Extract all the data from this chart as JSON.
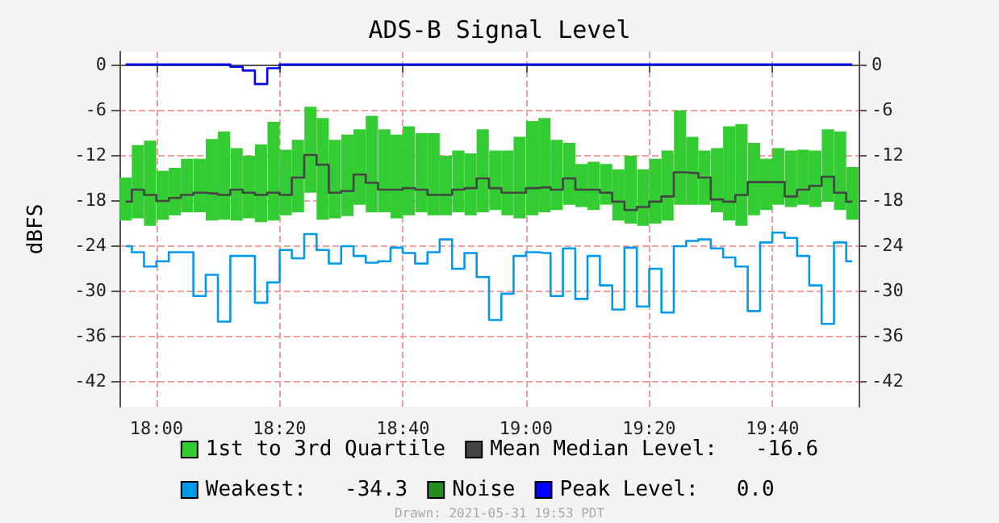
{
  "chart_data": {
    "type": "step",
    "title": "ADS-B Signal Level",
    "ylabel": "dBFS",
    "x": [
      17.917,
      17.95,
      17.983,
      18.017,
      18.05,
      18.083,
      18.117,
      18.15,
      18.183,
      18.217,
      18.25,
      18.283,
      18.317,
      18.35,
      18.383,
      18.417,
      18.45,
      18.483,
      18.517,
      18.55,
      18.583,
      18.617,
      18.65,
      18.683,
      18.717,
      18.75,
      18.783,
      18.817,
      18.85,
      18.883,
      18.917,
      18.95,
      18.983,
      19.017,
      19.05,
      19.083,
      19.117,
      19.15,
      19.183,
      19.217,
      19.25,
      19.283,
      19.317,
      19.35,
      19.383,
      19.417,
      19.45,
      19.483,
      19.517,
      19.55,
      19.583,
      19.617,
      19.65,
      19.683,
      19.717,
      19.75,
      19.783,
      19.817,
      19.85,
      19.883
    ],
    "series": [
      {
        "name": "1st to 3rd Quartile",
        "type": "bar",
        "color": "#33cc33",
        "base": [
          -20.7,
          -20.4,
          -21.4,
          -20.6,
          -20,
          -19.6,
          -19.6,
          -20.7,
          -20.6,
          -20.7,
          -20.4,
          -20.9,
          -20.7,
          -20,
          -19.6,
          -17,
          -20.6,
          -20.4,
          -20.1,
          -18.6,
          -19.6,
          -19.6,
          -20.4,
          -20,
          -19.6,
          -20,
          -20,
          -19.6,
          -20,
          -19.6,
          -19.3,
          -20,
          -20.4,
          -20,
          -19.6,
          -19.3,
          -18.6,
          -18.9,
          -19.3,
          -18.6,
          -20.7,
          -21.1,
          -21.4,
          -21.1,
          -20.7,
          -18.6,
          -18.6,
          -18.6,
          -19.6,
          -20.7,
          -21.4,
          -20,
          -19.3,
          -18.6,
          -18.9,
          -18.6,
          -18.9,
          -18.2,
          -19.3,
          -20.6
        ],
        "values": [
          5.7,
          9.7,
          11.3,
          6.5,
          6.3,
          7.1,
          7.1,
          10.8,
          11.7,
          9.6,
          8.3,
          10.3,
          13.1,
          8.7,
          9.6,
          11.4,
          13.5,
          10.4,
          10.8,
          10,
          12.8,
          11,
          11.1,
          11.8,
          10.5,
          10.9,
          7.9,
          8.2,
          8.2,
          11,
          7.9,
          8.6,
          10.8,
          12.5,
          12.5,
          9.3,
          8.2,
          5.7,
          6.4,
          5.4,
          6.8,
          9,
          7.5,
          8.6,
          9.3,
          12.5,
          9,
          7.2,
          8.5,
          12.5,
          13.5,
          9.6,
          6.8,
          7.5,
          7.5,
          7.3,
          7.5,
          9.6,
          10.4,
          7
        ]
      },
      {
        "name": "Mean Median Level:   -16.6",
        "color": "#444444",
        "values": [
          -18.2,
          -16.6,
          -17.3,
          -18.1,
          -17.7,
          -17.3,
          -17,
          -17.1,
          -17.3,
          -16.6,
          -17,
          -17.3,
          -17,
          -17.3,
          -15,
          -12,
          -13.3,
          -17,
          -16.8,
          -14.6,
          -15.7,
          -16.6,
          -16.6,
          -16.4,
          -16.6,
          -17.3,
          -17.3,
          -16.6,
          -16.4,
          -15.1,
          -16.4,
          -17,
          -17,
          -16.4,
          -16.3,
          -16.6,
          -15.1,
          -16.6,
          -16.6,
          -17,
          -18.2,
          -19.3,
          -18.9,
          -18.2,
          -17.5,
          -14.3,
          -14.4,
          -15,
          -17.9,
          -18.2,
          -17.3,
          -15.6,
          -15.6,
          -15.6,
          -17.5,
          -16.6,
          -16.1,
          -14.9,
          -17,
          -18.2
        ]
      },
      {
        "name": "Weakest:   -34.3",
        "color": "#0099ee",
        "values": [
          -24.1,
          -24.9,
          -26.8,
          -26.1,
          -24.9,
          -24.9,
          -30.7,
          -27.9,
          -34.1,
          -25.4,
          -25.4,
          -31.6,
          -28.9,
          -24.6,
          -25.7,
          -22.5,
          -24.6,
          -26.4,
          -24.1,
          -25.4,
          -26.3,
          -26.1,
          -24.3,
          -25,
          -26.4,
          -24.9,
          -23.2,
          -27.1,
          -25,
          -28.2,
          -33.9,
          -30.4,
          -25.4,
          -24.9,
          -25,
          -30.7,
          -24.4,
          -31.1,
          -25.4,
          -29.3,
          -32.5,
          -24.3,
          -32.1,
          -27.1,
          -32.9,
          -24.1,
          -23.4,
          -23.2,
          -24.4,
          -25.6,
          -26.8,
          -32.7,
          -23.6,
          -22.3,
          -23,
          -25.4,
          -29.3,
          -34.4,
          -23.6,
          -26.1
        ]
      },
      {
        "name": "Noise",
        "color": "#228b22",
        "values": [
          null,
          null,
          null,
          null,
          null,
          null,
          null,
          null,
          null,
          null,
          null,
          null,
          null,
          null,
          null,
          null,
          null,
          null,
          null,
          null,
          null,
          null,
          null,
          null,
          null,
          null,
          null,
          null,
          null,
          null,
          null,
          null,
          null,
          null,
          null,
          null,
          null,
          null,
          null,
          null,
          null,
          null,
          null,
          null,
          null,
          null,
          null,
          null,
          null,
          null,
          null,
          null,
          null,
          null,
          null,
          null,
          null,
          null,
          null,
          null
        ]
      },
      {
        "name": "Peak Level:   0.0",
        "color": "#0000ff",
        "values": [
          0,
          0,
          0,
          0,
          0,
          0,
          0,
          0,
          0,
          -0.3,
          -0.8,
          -2.6,
          -0.5,
          0,
          0,
          0,
          0,
          0,
          0,
          0,
          0,
          0,
          0,
          0,
          0,
          0,
          0,
          0,
          0,
          0,
          0,
          0,
          0,
          0,
          0,
          0,
          0,
          0,
          0,
          0,
          0,
          0,
          0,
          0,
          0,
          0,
          0,
          0,
          0,
          0,
          0,
          0,
          0,
          0,
          0,
          0,
          0,
          0,
          0,
          0
        ]
      }
    ],
    "xlim": [
      17.9,
      19.9
    ],
    "xticks": [
      {
        "value": 18,
        "label": "18:00"
      },
      {
        "value": 18.333,
        "label": "18:20"
      },
      {
        "value": 18.667,
        "label": "18:40"
      },
      {
        "value": 19,
        "label": "19:00"
      },
      {
        "value": 19.333,
        "label": "19:20"
      },
      {
        "value": 19.667,
        "label": "19:40"
      }
    ],
    "ylim": [
      -45.4,
      1.7
    ],
    "yticks": [
      0,
      -6,
      -12,
      -18,
      -24,
      -30,
      -36,
      -42
    ],
    "y2lim": [
      -45.4,
      1.7
    ],
    "y2ticks": [
      0,
      -6,
      -12,
      -18,
      -24,
      -30,
      -36,
      -42
    ],
    "grid": true,
    "legend": "bottom",
    "annotations": [
      "Drawn: 2021-05-31 19:53 PDT"
    ]
  }
}
